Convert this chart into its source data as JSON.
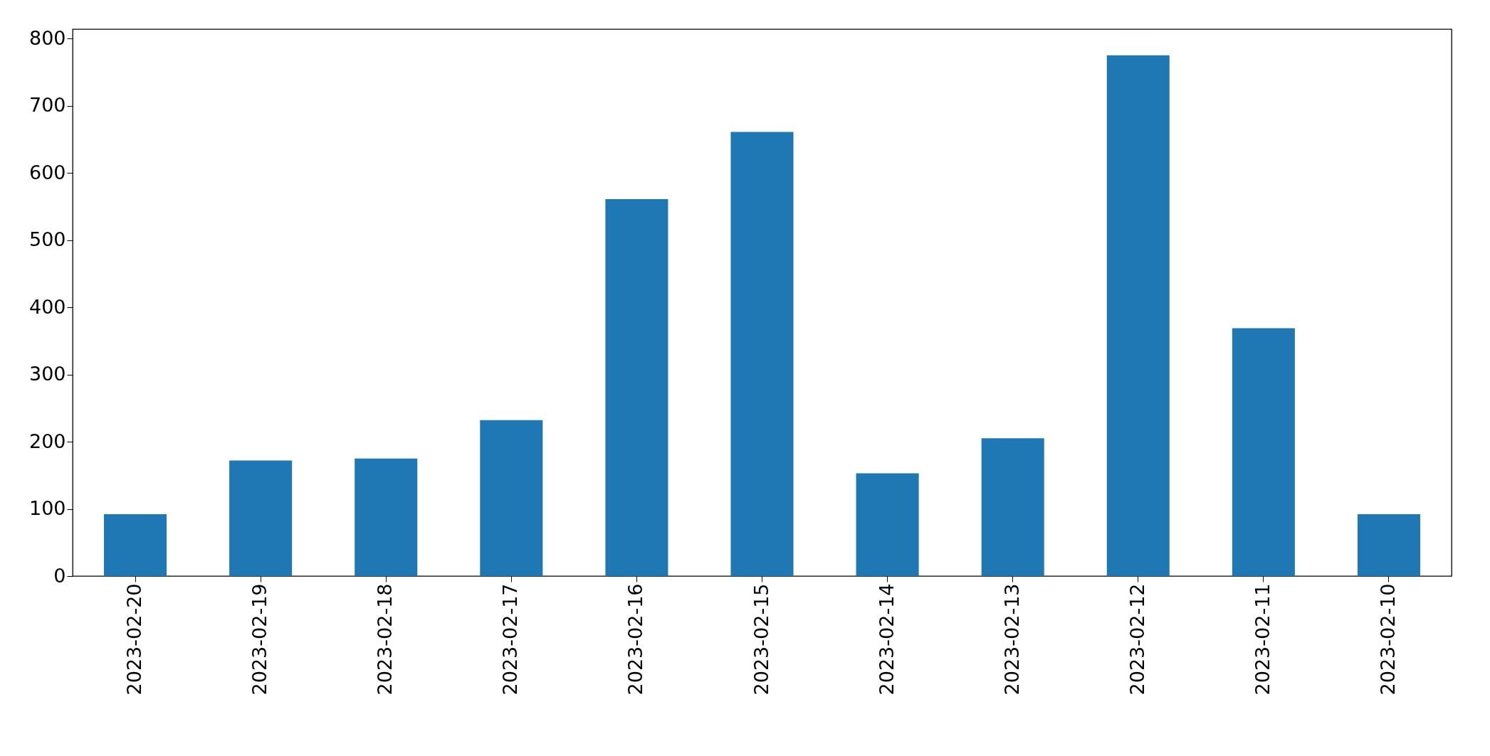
{
  "chart_data": {
    "type": "bar",
    "categories": [
      "2023-02-20",
      "2023-02-19",
      "2023-02-18",
      "2023-02-17",
      "2023-02-16",
      "2023-02-15",
      "2023-02-14",
      "2023-02-13",
      "2023-02-12",
      "2023-02-11",
      "2023-02-10"
    ],
    "values": [
      92,
      172,
      175,
      232,
      561,
      661,
      153,
      205,
      775,
      369,
      92
    ],
    "color": "#1f77b4",
    "ylim": [
      0,
      814
    ],
    "yticks": [
      0,
      100,
      200,
      300,
      400,
      500,
      600,
      700,
      800
    ],
    "grid": false
  }
}
